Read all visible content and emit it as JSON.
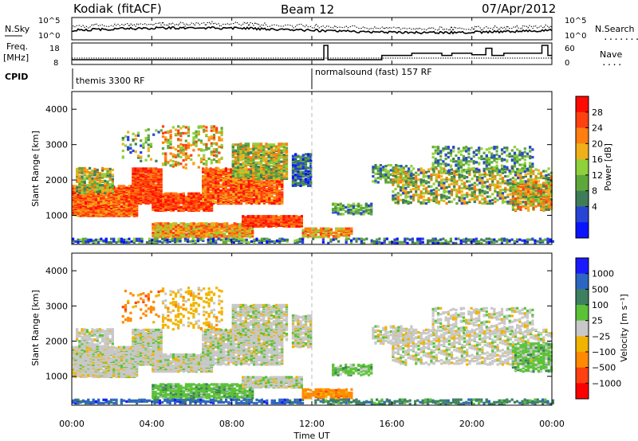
{
  "header": {
    "radar": "Kodiak (fitACF)",
    "beam": "Beam 12",
    "date": "07/Apr/2012"
  },
  "noise_panel": {
    "left_label": "N.Sky",
    "right_label": "N.Search",
    "right_legend": "........",
    "tick_top": "10^5",
    "tick_bottom": "10^0"
  },
  "freq_panel": {
    "left_label_1": "Freq.",
    "left_label_2": "[MHz]",
    "right_label": "Nave",
    "right_legend": "....",
    "left_ticks": [
      "18",
      "8"
    ],
    "right_ticks": [
      "60",
      "0"
    ]
  },
  "cpid_panel": {
    "label": "CPID",
    "segments": [
      {
        "label": "themis 3300 RF",
        "start_hour": 0
      },
      {
        "label": "normalsound (fast) 157 RF",
        "start_hour": 12
      }
    ]
  },
  "time_axis": {
    "label": "Time UT",
    "ticks": [
      "00:00",
      "04:00",
      "08:00",
      "12:00",
      "16:00",
      "20:00",
      "00:00"
    ]
  },
  "colors": {
    "power": [
      "#0a14ff",
      "#2845d6",
      "#3f7d58",
      "#5ea83b",
      "#8fd13a",
      "#f0b01a",
      "#ff7e10",
      "#ff4010",
      "#ff0a00"
    ],
    "velocity": [
      "#1a1aff",
      "#2d66c2",
      "#3d8060",
      "#5bc238",
      "#c8c8c8",
      "#f0b400",
      "#ff8a00",
      "#ff4010",
      "#ff0000"
    ]
  },
  "chart_data": [
    {
      "type": "heatmap",
      "title": "",
      "xlabel": "",
      "ylabel": "Slant Range [km]",
      "xlim": [
        0,
        24
      ],
      "ylim": [
        180,
        4500
      ],
      "yticks": [
        "1000",
        "2000",
        "3000",
        "4000"
      ],
      "colorbar": {
        "label": "Power [dB]",
        "ticks": [
          "4",
          "8",
          "12",
          "16",
          "20",
          "24",
          "28"
        ]
      }
    },
    {
      "type": "heatmap",
      "title": "",
      "xlabel": "Time UT",
      "ylabel": "Slant Range [km]",
      "xlim": [
        0,
        24
      ],
      "ylim": [
        180,
        4500
      ],
      "yticks": [
        "1000",
        "2000",
        "3000",
        "4000"
      ],
      "colorbar": {
        "label": "Velocity [m s⁻¹]",
        "ticks": [
          "1000",
          "500",
          "100",
          "25",
          "−25",
          "−100",
          "−500",
          "−1000"
        ]
      }
    }
  ]
}
